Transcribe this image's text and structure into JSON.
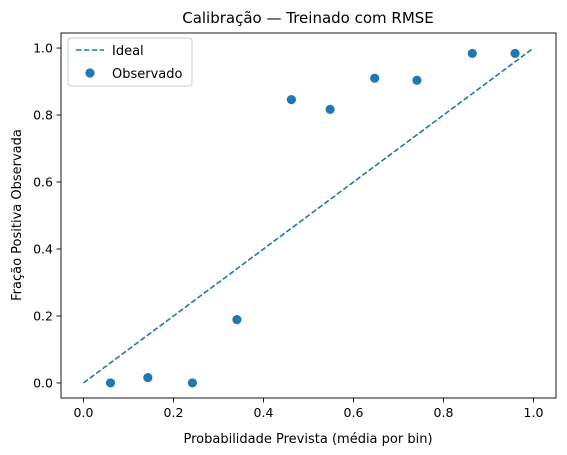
{
  "chart_data": {
    "type": "scatter",
    "title": "Calibração — Treinado com RMSE",
    "xlabel": "Probabilidade Prevista (média por bin)",
    "ylabel": "Fração Positiva Observada",
    "xlim": [
      -0.05,
      1.05
    ],
    "ylim": [
      -0.045,
      1.045
    ],
    "xticks": [
      0.0,
      0.2,
      0.4,
      0.6,
      0.8,
      1.0
    ],
    "xtick_labels": [
      "0.0",
      "0.2",
      "0.4",
      "0.6",
      "0.8",
      "1.0"
    ],
    "yticks": [
      0.0,
      0.2,
      0.4,
      0.6,
      0.8,
      1.0
    ],
    "ytick_labels": [
      "0.0",
      "0.2",
      "0.4",
      "0.6",
      "0.8",
      "1.0"
    ],
    "grid": false,
    "legend_position": "top-left",
    "series": [
      {
        "name": "Ideal",
        "kind": "line",
        "style": "dashed",
        "color": "#1f77b4",
        "x": [
          0.0,
          1.0
        ],
        "y": [
          0.0,
          1.0
        ]
      },
      {
        "name": "Observado",
        "kind": "scatter",
        "color": "#1f77b4",
        "x": [
          0.06,
          0.143,
          0.242,
          0.341,
          0.462,
          0.548,
          0.647,
          0.741,
          0.864,
          0.959
        ],
        "y": [
          0.0,
          0.016,
          0.0,
          0.189,
          0.846,
          0.817,
          0.91,
          0.904,
          0.984,
          0.984
        ]
      }
    ]
  }
}
